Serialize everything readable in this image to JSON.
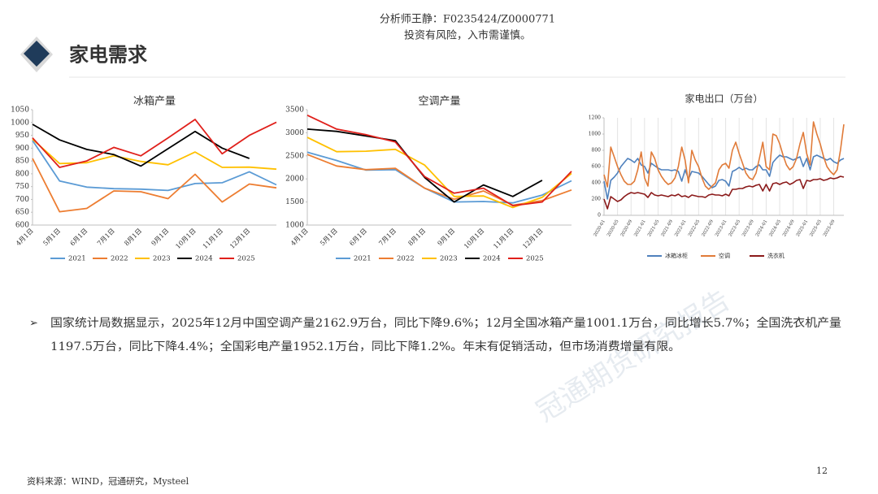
{
  "header": {
    "analyst": "分析师王静：F0235424/Z0000771",
    "risk": "投资有风险，入市需谨慎。"
  },
  "title": "家电需求",
  "bullet": [
    "国家统计局数据显示，2025年12月中国空调产量2162.9万台，同比下降9.6%；12月全国冰箱产量1001.1万台，同比增长5.7%；全国洗衣机产量",
    "1197.5万台，同比下降4.4%；全国彩电产量1952.1万台，同比下降1.2%。年末有促销活动，但市场消费增量有限。"
  ],
  "source": "资料来源：WIND，冠通研究，Mysteel",
  "page_number": "12",
  "watermark": "冠通期货研究报告",
  "chart_data": [
    {
      "type": "line",
      "title": "冰箱产量",
      "grid": false,
      "xgrid": false,
      "categories": [
        "4月1日",
        "5月1日",
        "6月1日",
        "7月1日",
        "8月1日",
        "9月1日",
        "10月1日",
        "11月1日",
        "12月1日",
        null
      ],
      "ylim": [
        600,
        1050
      ],
      "yticks": [
        600,
        650,
        700,
        750,
        800,
        850,
        900,
        950,
        1000,
        1050
      ],
      "series": [
        {
          "name": "2021",
          "color": "#5b9bd5",
          "values": [
            930,
            772,
            748,
            742,
            740,
            735,
            762,
            765,
            808,
            757
          ]
        },
        {
          "name": "2022",
          "color": "#ed7d31",
          "values": [
            860,
            652,
            665,
            733,
            730,
            703,
            798,
            690,
            760,
            745
          ]
        },
        {
          "name": "2023",
          "color": "#ffc000",
          "values": [
            935,
            840,
            843,
            870,
            848,
            835,
            885,
            825,
            826,
            818
          ]
        },
        {
          "name": "2024",
          "color": "#000000",
          "values": [
            993,
            932,
            895,
            875,
            830,
            898,
            965,
            900,
            860,
            null
          ]
        },
        {
          "name": "2025",
          "color": "#e0201b",
          "values": [
            940,
            825,
            850,
            903,
            870,
            940,
            1012,
            878,
            950,
            1001.1
          ]
        }
      ]
    },
    {
      "type": "line",
      "title": "空调产量",
      "grid": false,
      "xgrid": false,
      "categories": [
        "4月1日",
        "5月1日",
        "6月1日",
        "7月1日",
        "8月1日",
        "9月1日",
        "10月1日",
        "11月1日",
        "12月1日",
        null
      ],
      "ylim": [
        1000,
        3500
      ],
      "yticks": [
        1000,
        1500,
        2000,
        2500,
        3000,
        3500
      ],
      "series": [
        {
          "name": "2021",
          "color": "#5b9bd5",
          "values": [
            2580,
            2400,
            2190,
            2200,
            1800,
            1500,
            1510,
            1480,
            1650,
            1960
          ]
        },
        {
          "name": "2022",
          "color": "#ed7d31",
          "values": [
            2530,
            2280,
            2200,
            2230,
            1800,
            1560,
            1740,
            1430,
            1530,
            1760
          ]
        },
        {
          "name": "2023",
          "color": "#ffc000",
          "values": [
            2900,
            2590,
            2600,
            2640,
            2300,
            1620,
            1630,
            1380,
            1600,
            2120
          ]
        },
        {
          "name": "2024",
          "color": "#000000",
          "values": [
            3080,
            3030,
            2930,
            2830,
            2030,
            1500,
            1870,
            1620,
            1970,
            null
          ]
        },
        {
          "name": "2025",
          "color": "#e0201b",
          "values": [
            3380,
            3080,
            2960,
            2800,
            2050,
            1690,
            1800,
            1420,
            1500,
            2162.9
          ]
        }
      ]
    },
    {
      "type": "line",
      "title": "家电出口（万台）",
      "grid": false,
      "xgrid": true,
      "categories": [
        "2020-01",
        null,
        null,
        null,
        "2020-05",
        null,
        null,
        null,
        "2020-09",
        null,
        null,
        null,
        "2021-01",
        null,
        null,
        null,
        "2021-05",
        null,
        null,
        null,
        "2021-09",
        null,
        null,
        null,
        "2022-01",
        null,
        null,
        null,
        "2022-05",
        null,
        null,
        null,
        "2022-09",
        null,
        null,
        null,
        "2023-01",
        null,
        null,
        null,
        "2023-05",
        null,
        null,
        null,
        "2023-09",
        null,
        null,
        null,
        "2024-01",
        null,
        null,
        null,
        "2024-05",
        null,
        null,
        null,
        "2024-09",
        null,
        null,
        null,
        "2025-01",
        null,
        null,
        null,
        "2025-05",
        null,
        null,
        null,
        "2025-09",
        null,
        null,
        null
      ],
      "ylim": [
        0,
        1200
      ],
      "yticks": [
        0,
        200,
        400,
        600,
        800,
        1000,
        1200
      ],
      "series": [
        {
          "name": "冰箱冰柜",
          "color": "#4f81bd",
          "values": [
            420,
            200,
            430,
            470,
            520,
            600,
            650,
            700,
            680,
            650,
            700,
            620,
            600,
            520,
            640,
            610,
            580,
            560,
            560,
            560,
            550,
            560,
            540,
            420,
            560,
            450,
            540,
            530,
            520,
            480,
            430,
            380,
            340,
            360,
            430,
            440,
            420,
            360,
            540,
            560,
            590,
            560,
            580,
            560,
            560,
            600,
            620,
            560,
            560,
            480,
            650,
            700,
            740,
            720,
            720,
            700,
            680,
            700,
            720,
            600,
            700,
            560,
            720,
            740,
            720,
            700,
            680,
            700,
            660,
            640,
            680,
            700
          ]
        },
        {
          "name": "空调",
          "color": "#e07b39",
          "values": [
            500,
            350,
            840,
            720,
            600,
            500,
            420,
            380,
            380,
            420,
            560,
            780,
            460,
            360,
            780,
            700,
            560,
            480,
            420,
            380,
            400,
            460,
            600,
            840,
            680,
            400,
            800,
            680,
            600,
            460,
            360,
            320,
            360,
            400,
            560,
            620,
            640,
            580,
            800,
            900,
            760,
            640,
            520,
            460,
            440,
            520,
            700,
            900,
            600,
            560,
            1000,
            980,
            880,
            740,
            620,
            560,
            600,
            700,
            880,
            1020,
            760,
            620,
            1150,
            1000,
            880,
            720,
            600,
            540,
            500,
            560,
            800,
            1120
          ]
        },
        {
          "name": "洗衣机",
          "color": "#8b1a1a",
          "values": [
            200,
            80,
            230,
            200,
            170,
            190,
            230,
            260,
            280,
            270,
            280,
            270,
            260,
            220,
            280,
            250,
            240,
            250,
            240,
            230,
            250,
            240,
            260,
            230,
            240,
            220,
            250,
            240,
            230,
            230,
            220,
            250,
            260,
            250,
            250,
            240,
            260,
            240,
            320,
            320,
            330,
            330,
            350,
            360,
            350,
            370,
            380,
            300,
            380,
            300,
            390,
            400,
            380,
            400,
            410,
            380,
            400,
            430,
            440,
            330,
            430,
            420,
            440,
            440,
            450,
            430,
            440,
            460,
            450,
            460,
            480,
            470
          ]
        }
      ]
    }
  ]
}
